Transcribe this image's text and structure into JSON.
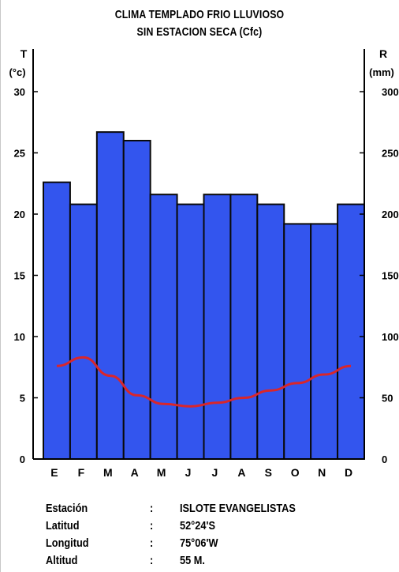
{
  "chart_data": {
    "type": "bar",
    "title_lines": [
      "CLIMA TEMPLADO FRIO LLUVIOSO",
      "SIN ESTACION SECA (Cfc)"
    ],
    "left_axis": {
      "label_top": "T",
      "label_unit": "(°c)",
      "ticks": [
        0,
        5,
        10,
        15,
        20,
        25,
        30
      ],
      "range": [
        0,
        30
      ]
    },
    "right_axis": {
      "label_top": "R",
      "label_unit": "(mm)",
      "ticks": [
        0,
        50,
        100,
        150,
        200,
        250,
        300
      ],
      "range": [
        0,
        300
      ]
    },
    "categories": [
      "E",
      "F",
      "M",
      "A",
      "M",
      "J",
      "J",
      "A",
      "S",
      "O",
      "N",
      "D"
    ],
    "series": [
      {
        "kind": "bar",
        "axis": "right",
        "values": [
          226,
          208,
          267,
          260,
          216,
          208,
          216,
          216,
          208,
          192,
          192,
          208
        ]
      },
      {
        "kind": "line",
        "axis": "left",
        "values": [
          7.6,
          8.3,
          6.8,
          5.2,
          4.5,
          4.3,
          4.6,
          5.0,
          5.6,
          6.2,
          6.9,
          7.6
        ]
      }
    ],
    "colors": {
      "bar_fill": "#3355ee",
      "bar_stroke": "#0a0a0a",
      "line": "#d9262b"
    }
  },
  "station": [
    {
      "label": "Estación",
      "value": "ISLOTE EVANGELISTAS"
    },
    {
      "label": "Latitud",
      "value": "52°24'S"
    },
    {
      "label": "Longitud",
      "value": "75°06'W"
    },
    {
      "label": "Altitud",
      "value": "55 M."
    }
  ],
  "colon": ":"
}
